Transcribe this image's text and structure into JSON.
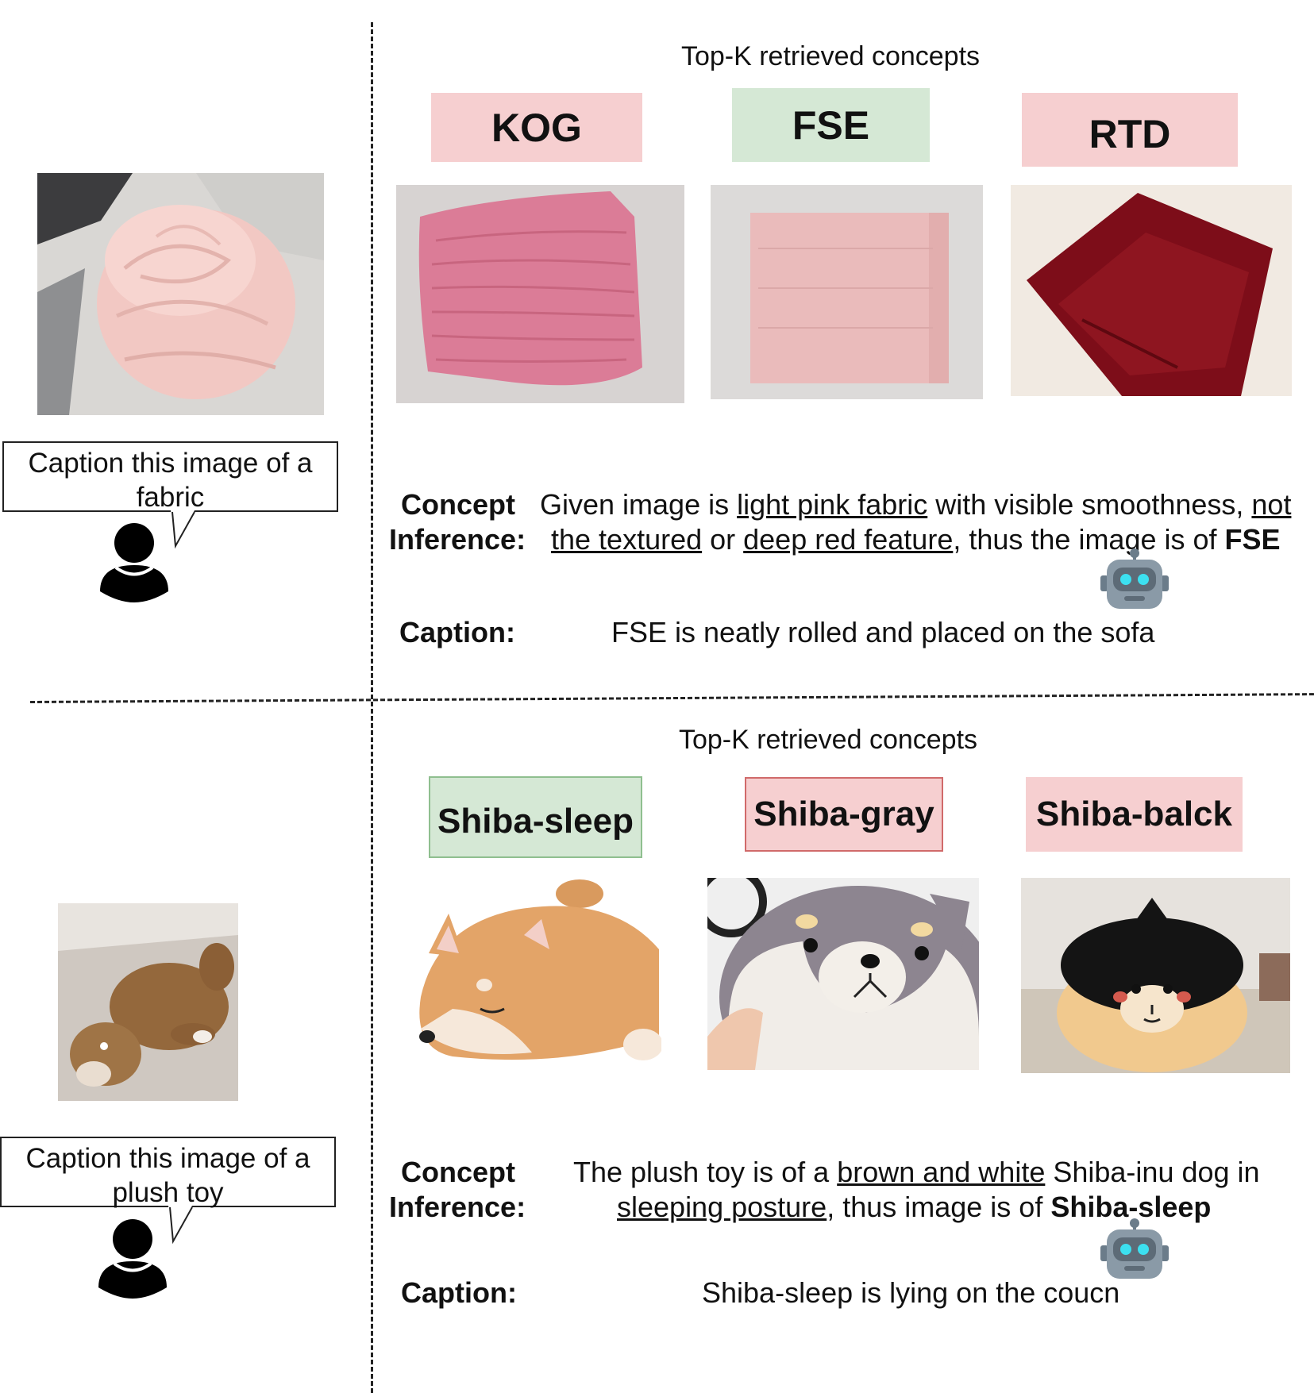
{
  "panels": [
    {
      "topk_label": "Top-K retrieved concepts",
      "user_prompt": "Caption this image of a fabric",
      "concepts": [
        {
          "name": "KOG",
          "status": "incorrect"
        },
        {
          "name": "FSE",
          "status": "correct"
        },
        {
          "name": "RTD",
          "status": "incorrect"
        }
      ],
      "inference_label_1": "Concept",
      "inference_label_2": "Inference:",
      "inference": {
        "l1_a": "Given image is ",
        "l1_u1": "light pink fabric",
        "l1_b": " with visible smoothness, ",
        "l1_u2": "not",
        "l2_u1": "the textured",
        "l2_a": " or ",
        "l2_u2": "deep red feature",
        "l2_b": ", thus the image is of ",
        "l2_bold": "FSE"
      },
      "caption_label": "Caption:",
      "caption": "FSE is neatly rolled and placed on the sofa"
    },
    {
      "topk_label": "Top-K retrieved concepts",
      "user_prompt": "Caption this image of a plush toy",
      "concepts": [
        {
          "name": "Shiba-sleep",
          "status": "correct"
        },
        {
          "name": "Shiba-gray",
          "status": "incorrect"
        },
        {
          "name": "Shiba-balck",
          "status": "incorrect"
        }
      ],
      "inference_label_1": "Concept",
      "inference_label_2": "Inference:",
      "inference": {
        "l1_a": "The plush toy is of a ",
        "l1_u1": "brown and white",
        "l1_b": " Shiba-inu dog in",
        "l2_u1": "sleeping posture",
        "l2_a": ", thus image is of ",
        "l2_bold": "Shiba-sleep"
      },
      "caption_label": "Caption:",
      "caption": "Shiba-sleep is lying on the coucn"
    }
  ],
  "icons": {
    "user": "user-icon",
    "robot": "robot-icon"
  },
  "colors": {
    "correct": "#d5e8d5",
    "incorrect": "#f6cfd0"
  }
}
